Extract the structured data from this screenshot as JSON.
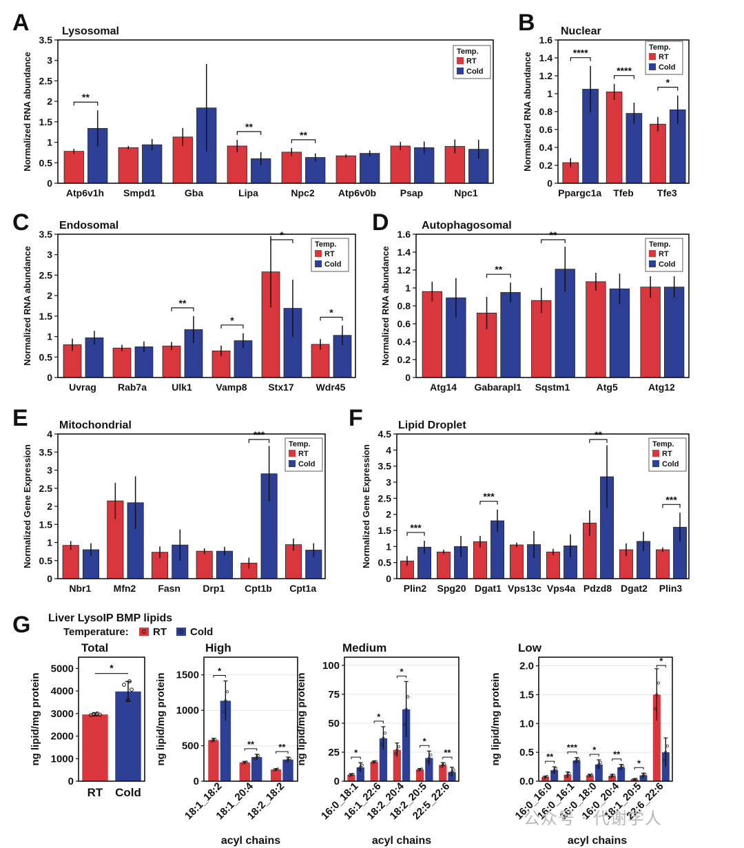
{
  "colors": {
    "rt": "#d9363e",
    "cold": "#2e3f96"
  },
  "watermark": "公众号 · 代谢学人",
  "panels": [
    {
      "letter": "A",
      "title": "Lysosomal",
      "ylabel": "Normalized RNA abundance",
      "legend": true
    },
    {
      "letter": "B",
      "title": "Nuclear",
      "ylabel": "Normalized RNA abundance",
      "legend": true
    },
    {
      "letter": "C",
      "title": "Endosomal",
      "ylabel": "Normalized RNA abundance",
      "legend": true
    },
    {
      "letter": "D",
      "title": "Autophagosomal",
      "ylabel": "Normalized RNA abundance",
      "legend": true
    },
    {
      "letter": "E",
      "title": "Mitochondrial",
      "ylabel": "Normalized Gene Expression",
      "legend": true
    },
    {
      "letter": "F",
      "title": "Lipid Droplet",
      "ylabel": "Normalized Gene Expression",
      "legend": true
    },
    {
      "letter": "G",
      "title": "Liver LysoIP BMP lipids",
      "legend_prefix": "Temperature:",
      "legend_rt": "RT",
      "legend_cold": "Cold"
    }
  ],
  "legend": {
    "title": "Temp.",
    "rt": "RT",
    "cold": "Cold"
  },
  "chart_data": [
    {
      "id": "A",
      "type": "bar",
      "title": "Lysosomal",
      "ylabel": "Normalized RNA abundance",
      "ylim": [
        0,
        3.5
      ],
      "yticks": [
        "0",
        "0.5",
        "1",
        "1.5",
        "2",
        "2.5",
        "3",
        "3.5"
      ],
      "categories": [
        "Atp6v1h",
        "Smpd1",
        "Gba",
        "Lipa",
        "Npc2",
        "Atp6v0b",
        "Psap",
        "Npc1"
      ],
      "series": [
        {
          "name": "RT",
          "values": [
            0.78,
            0.87,
            1.13,
            0.91,
            0.76,
            0.67,
            0.91,
            0.9
          ],
          "err": [
            0.06,
            0.04,
            0.22,
            0.15,
            0.1,
            0.04,
            0.1,
            0.17
          ]
        },
        {
          "name": "Cold",
          "values": [
            1.34,
            0.94,
            1.84,
            0.6,
            0.63,
            0.73,
            0.87,
            0.83
          ],
          "err": [
            0.44,
            0.14,
            1.07,
            0.16,
            0.1,
            0.07,
            0.15,
            0.23
          ]
        }
      ],
      "sig": [
        {
          "index": 0,
          "label": "**"
        },
        {
          "index": 3,
          "label": "**"
        },
        {
          "index": 4,
          "label": "**"
        }
      ]
    },
    {
      "id": "B",
      "type": "bar",
      "title": "Nuclear",
      "ylabel": "Normalized RNA abundance",
      "ylim": [
        0,
        1.6
      ],
      "yticks": [
        "0",
        "0.2",
        "0.4",
        "0.6",
        "0.8",
        "1",
        "1.2",
        "1.4",
        "1.6"
      ],
      "categories": [
        "Ppargc1a",
        "Tfeb",
        "Tfe3"
      ],
      "series": [
        {
          "name": "RT",
          "values": [
            0.23,
            1.02,
            0.66
          ],
          "err": [
            0.05,
            0.09,
            0.08
          ]
        },
        {
          "name": "Cold",
          "values": [
            1.05,
            0.78,
            0.82
          ],
          "err": [
            0.26,
            0.12,
            0.16
          ]
        }
      ],
      "sig": [
        {
          "index": 0,
          "label": "****"
        },
        {
          "index": 1,
          "label": "****"
        },
        {
          "index": 2,
          "label": "*"
        }
      ]
    },
    {
      "id": "C",
      "type": "bar",
      "title": "Endosomal",
      "ylabel": "Normalized RNA abundance",
      "ylim": [
        0,
        3.5
      ],
      "yticks": [
        "0",
        "0.5",
        "1",
        "1.5",
        "2",
        "2.5",
        "3",
        "3.5"
      ],
      "categories": [
        "Uvrag",
        "Rab7a",
        "Ulk1",
        "Vamp8",
        "Stx17",
        "Wdr45"
      ],
      "series": [
        {
          "name": "RT",
          "values": [
            0.8,
            0.72,
            0.77,
            0.65,
            2.58,
            0.81
          ],
          "err": [
            0.15,
            0.08,
            0.1,
            0.13,
            0.87,
            0.13
          ]
        },
        {
          "name": "Cold",
          "values": [
            0.97,
            0.75,
            1.17,
            0.9,
            1.69,
            1.03
          ],
          "err": [
            0.17,
            0.13,
            0.33,
            0.18,
            0.7,
            0.24
          ]
        }
      ],
      "sig": [
        {
          "index": 2,
          "label": "**"
        },
        {
          "index": 3,
          "label": "*"
        },
        {
          "index": 4,
          "label": "*"
        },
        {
          "index": 5,
          "label": "*"
        }
      ]
    },
    {
      "id": "D",
      "type": "bar",
      "title": "Autophagosomal",
      "ylabel": "Normalized RNA abundance",
      "ylim": [
        0,
        1.6
      ],
      "yticks": [
        "0",
        "0.2",
        "0.4",
        "0.6",
        "0.8",
        "1",
        "1.2",
        "1.4",
        "1.6"
      ],
      "categories": [
        "Atg14",
        "Gabarapl1",
        "Sqstm1",
        "Atg5",
        "Atg12"
      ],
      "series": [
        {
          "name": "RT",
          "values": [
            0.96,
            0.72,
            0.86,
            1.07,
            1.01
          ],
          "err": [
            0.11,
            0.18,
            0.14,
            0.1,
            0.12
          ]
        },
        {
          "name": "Cold",
          "values": [
            0.89,
            0.95,
            1.21,
            0.99,
            1.01
          ],
          "err": [
            0.22,
            0.11,
            0.25,
            0.17,
            0.12
          ]
        }
      ],
      "sig": [
        {
          "index": 1,
          "label": "**"
        },
        {
          "index": 2,
          "label": "**"
        }
      ]
    },
    {
      "id": "E",
      "type": "bar",
      "title": "Mitochondrial",
      "ylabel": "Normalized Gene Expression",
      "ylim": [
        0,
        4
      ],
      "yticks": [
        "0",
        "0.5",
        "1",
        "1.5",
        "2",
        "2.5",
        "3",
        "3.5",
        "4"
      ],
      "categories": [
        "Nbr1",
        "Mfn2",
        "Fasn",
        "Drp1",
        "Cpt1b",
        "Cpt1a"
      ],
      "series": [
        {
          "name": "RT",
          "values": [
            0.92,
            2.15,
            0.73,
            0.76,
            0.43,
            0.94
          ],
          "err": [
            0.12,
            0.5,
            0.16,
            0.08,
            0.15,
            0.17
          ]
        },
        {
          "name": "Cold",
          "values": [
            0.8,
            2.1,
            0.93,
            0.76,
            2.9,
            0.79
          ],
          "err": [
            0.18,
            0.73,
            0.43,
            0.12,
            0.77,
            0.19
          ]
        }
      ],
      "sig": [
        {
          "index": 4,
          "label": "***"
        }
      ]
    },
    {
      "id": "F",
      "type": "bar",
      "title": "Lipid Droplet",
      "ylabel": "Normalized Gene Expression",
      "ylim": [
        0,
        4.5
      ],
      "yticks": [
        "0",
        "0.5",
        "1",
        "1.5",
        "2",
        "2.5",
        "3",
        "3.5",
        "4",
        "4.5"
      ],
      "categories": [
        "Plin2",
        "Spg20",
        "Dgat1",
        "Vps13c",
        "Vps4a",
        "Pdzd8",
        "Dgat2",
        "Plin3"
      ],
      "series": [
        {
          "name": "RT",
          "values": [
            0.55,
            0.83,
            1.15,
            1.05,
            0.83,
            1.73,
            0.9,
            0.9
          ],
          "err": [
            0.15,
            0.07,
            0.18,
            0.07,
            0.1,
            0.4,
            0.2,
            0.07
          ]
        },
        {
          "name": "Cold",
          "values": [
            0.98,
            1.0,
            1.8,
            1.06,
            1.02,
            3.17,
            1.16,
            1.6
          ],
          "err": [
            0.2,
            0.33,
            0.35,
            0.42,
            0.36,
            0.98,
            0.3,
            0.45
          ]
        }
      ],
      "sig": [
        {
          "index": 0,
          "label": "***"
        },
        {
          "index": 2,
          "label": "***"
        },
        {
          "index": 5,
          "label": "**"
        },
        {
          "index": 7,
          "label": "***"
        }
      ]
    },
    {
      "id": "G-Total",
      "type": "bar",
      "title": "Total",
      "ylabel": "ng lipid/mg protein",
      "ylim": [
        0,
        5500
      ],
      "yticks": [
        "0",
        "1000",
        "2000",
        "3000",
        "4000",
        "5000"
      ],
      "categories": [
        "RT",
        "Cold"
      ],
      "values": [
        2960,
        3980
      ],
      "err": [
        60,
        440
      ],
      "sig": [
        {
          "index": 0,
          "label": "*"
        }
      ]
    },
    {
      "id": "G-High",
      "type": "bar",
      "title": "High",
      "ylabel": "ng lipid/mg protein",
      "xlabel": "acyl chains",
      "ylim": [
        0,
        1750
      ],
      "yticks": [
        "0",
        "500",
        "1000",
        "1500"
      ],
      "categories": [
        "18:1_18:2",
        "18:1_20:4",
        "18:2_18:2"
      ],
      "series": [
        {
          "name": "RT",
          "values": [
            580,
            265,
            165
          ],
          "err": [
            25,
            15,
            12
          ]
        },
        {
          "name": "Cold",
          "values": [
            1135,
            340,
            305
          ],
          "err": [
            280,
            40,
            35
          ]
        }
      ],
      "sig": [
        {
          "index": 0,
          "label": "*"
        },
        {
          "index": 1,
          "label": "**"
        },
        {
          "index": 2,
          "label": "**"
        }
      ]
    },
    {
      "id": "G-Medium",
      "type": "bar",
      "title": "Medium",
      "ylabel": "ng lipid/mg protein",
      "xlabel": "acyl chains",
      "ylim": [
        0,
        107
      ],
      "yticks": [
        "0",
        "25",
        "50",
        "75",
        "100"
      ],
      "categories": [
        "16:0_18:1",
        "16:1_22:6",
        "18:2_20:4",
        "18:2_20:5",
        "22:5_22:6"
      ],
      "series": [
        {
          "name": "RT",
          "values": [
            5.5,
            16.5,
            27,
            10,
            14
          ],
          "err": [
            1,
            1,
            6,
            1,
            2
          ]
        },
        {
          "name": "Cold",
          "values": [
            12,
            37,
            62,
            20,
            8
          ],
          "err": [
            4,
            10,
            24,
            6,
            4
          ]
        }
      ],
      "sig": [
        {
          "index": 0,
          "label": "*"
        },
        {
          "index": 1,
          "label": "*"
        },
        {
          "index": 2,
          "label": "*"
        },
        {
          "index": 3,
          "label": "*"
        },
        {
          "index": 4,
          "label": "**"
        }
      ]
    },
    {
      "id": "G-Low",
      "type": "bar",
      "title": "Low",
      "ylabel": "ng lipid/mg protein",
      "xlabel": "acyl chains",
      "ylim": [
        0,
        2.15
      ],
      "yticks": [
        "0.0",
        "0.5",
        "1.0",
        "1.5",
        "2.0"
      ],
      "categories": [
        "16:0_16:0",
        "16:0_16:1",
        "16:0_18:0",
        "16:0_20:4",
        "18:1_20:5",
        "22:6_22:6"
      ],
      "series": [
        {
          "name": "RT",
          "values": [
            0.07,
            0.11,
            0.1,
            0.09,
            0.03,
            1.5
          ],
          "err": [
            0.02,
            0.05,
            0.02,
            0.03,
            0.01,
            0.45
          ]
        },
        {
          "name": "Cold",
          "values": [
            0.19,
            0.36,
            0.29,
            0.24,
            0.1,
            0.5
          ],
          "err": [
            0.06,
            0.05,
            0.08,
            0.05,
            0.04,
            0.25
          ]
        }
      ],
      "sig": [
        {
          "index": 0,
          "label": "**"
        },
        {
          "index": 1,
          "label": "***"
        },
        {
          "index": 2,
          "label": "*"
        },
        {
          "index": 3,
          "label": "**"
        },
        {
          "index": 4,
          "label": "*"
        },
        {
          "index": 5,
          "label": "*"
        }
      ]
    }
  ]
}
